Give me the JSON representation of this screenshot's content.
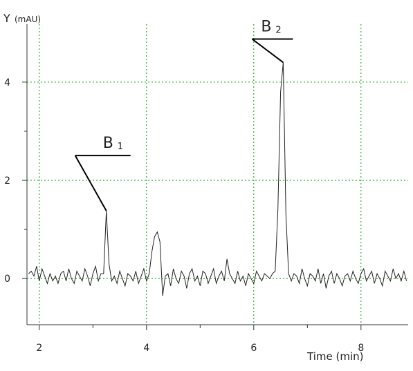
{
  "chart_data": {
    "type": "line",
    "y_label": "Y",
    "y_unit": "(mAU)",
    "x_label": "Time (min)",
    "xlim": [
      1.77,
      8.88
    ],
    "ylim": [
      -0.94,
      5.18
    ],
    "xticks": [
      2,
      4,
      6,
      8
    ],
    "x_minor_ticks": [
      3,
      5,
      7
    ],
    "yticks": [
      0,
      2,
      4
    ],
    "y_minor_ticks": [
      1,
      3
    ],
    "grid": true,
    "grid_color": "#00a000",
    "line_color": "#222222",
    "annotations": [
      {
        "text": "B",
        "subscript": "1",
        "x": 3.25,
        "y": 1.38
      },
      {
        "text": "B",
        "subscript": "2",
        "x": 6.55,
        "y": 4.4
      }
    ],
    "series": [
      {
        "name": null,
        "color": "#222222",
        "x": [
          1.8,
          1.85,
          1.9,
          1.95,
          2.0,
          2.05,
          2.1,
          2.15,
          2.2,
          2.25,
          2.3,
          2.35,
          2.4,
          2.45,
          2.5,
          2.55,
          2.6,
          2.65,
          2.7,
          2.75,
          2.8,
          2.85,
          2.9,
          2.95,
          3.0,
          3.05,
          3.1,
          3.15,
          3.2,
          3.25,
          3.3,
          3.35,
          3.4,
          3.45,
          3.5,
          3.55,
          3.6,
          3.65,
          3.7,
          3.75,
          3.8,
          3.85,
          3.9,
          3.95,
          4.0,
          4.05,
          4.1,
          4.15,
          4.2,
          4.25,
          4.3,
          4.35,
          4.4,
          4.45,
          4.5,
          4.55,
          4.6,
          4.65,
          4.7,
          4.75,
          4.8,
          4.85,
          4.9,
          4.95,
          5.0,
          5.05,
          5.1,
          5.15,
          5.2,
          5.25,
          5.3,
          5.35,
          5.4,
          5.45,
          5.5,
          5.55,
          5.6,
          5.65,
          5.7,
          5.75,
          5.8,
          5.85,
          5.9,
          5.95,
          6.0,
          6.05,
          6.1,
          6.15,
          6.2,
          6.25,
          6.3,
          6.35,
          6.4,
          6.45,
          6.5,
          6.55,
          6.6,
          6.65,
          6.7,
          6.75,
          6.8,
          6.85,
          6.9,
          6.95,
          7.0,
          7.05,
          7.1,
          7.15,
          7.2,
          7.25,
          7.3,
          7.35,
          7.4,
          7.45,
          7.5,
          7.55,
          7.6,
          7.65,
          7.7,
          7.75,
          7.8,
          7.85,
          7.9,
          7.95,
          8.0,
          8.05,
          8.1,
          8.15,
          8.2,
          8.25,
          8.3,
          8.35,
          8.4,
          8.45,
          8.5,
          8.55,
          8.6,
          8.65,
          8.7,
          8.75,
          8.8,
          8.85
        ],
        "values": [
          0.1,
          0.15,
          0.05,
          0.25,
          -0.05,
          0.2,
          0.05,
          -0.1,
          0.1,
          -0.05,
          0.05,
          -0.1,
          0.1,
          0.15,
          -0.05,
          0.2,
          0.0,
          -0.1,
          0.15,
          0.05,
          -0.05,
          0.2,
          0.05,
          -0.15,
          0.1,
          0.25,
          -0.05,
          0.1,
          0.1,
          1.38,
          0.3,
          -0.05,
          0.05,
          -0.1,
          0.15,
          0.0,
          -0.15,
          0.1,
          0.05,
          -0.05,
          0.15,
          -0.1,
          0.05,
          0.2,
          -0.05,
          0.1,
          0.55,
          0.85,
          0.95,
          0.75,
          -0.35,
          0.05,
          0.1,
          -0.15,
          0.2,
          0.0,
          -0.1,
          0.15,
          0.05,
          -0.2,
          0.1,
          0.2,
          -0.05,
          0.05,
          -0.15,
          0.15,
          0.1,
          -0.1,
          0.05,
          0.2,
          -0.1,
          0.05,
          0.15,
          -0.05,
          0.4,
          0.1,
          0.0,
          -0.1,
          0.15,
          -0.05,
          0.05,
          -0.15,
          0.1,
          0.0,
          -0.1,
          0.15,
          0.05,
          -0.05,
          0.1,
          0.05,
          0.0,
          0.1,
          0.15,
          1.4,
          3.8,
          4.4,
          1.3,
          0.1,
          -0.05,
          0.1,
          0.05,
          -0.1,
          0.2,
          0.0,
          -0.15,
          0.1,
          0.05,
          -0.05,
          0.2,
          -0.1,
          0.1,
          -0.2,
          0.05,
          0.15,
          -0.1,
          0.1,
          0.0,
          -0.15,
          0.05,
          0.1,
          -0.05,
          0.15,
          0.0,
          -0.1,
          0.1,
          0.2,
          -0.05,
          0.05,
          0.15,
          -0.1,
          0.1,
          0.0,
          -0.15,
          0.15,
          0.05,
          -0.05,
          0.2,
          0.0,
          0.1,
          -0.05,
          0.15,
          -0.05
        ]
      }
    ]
  }
}
